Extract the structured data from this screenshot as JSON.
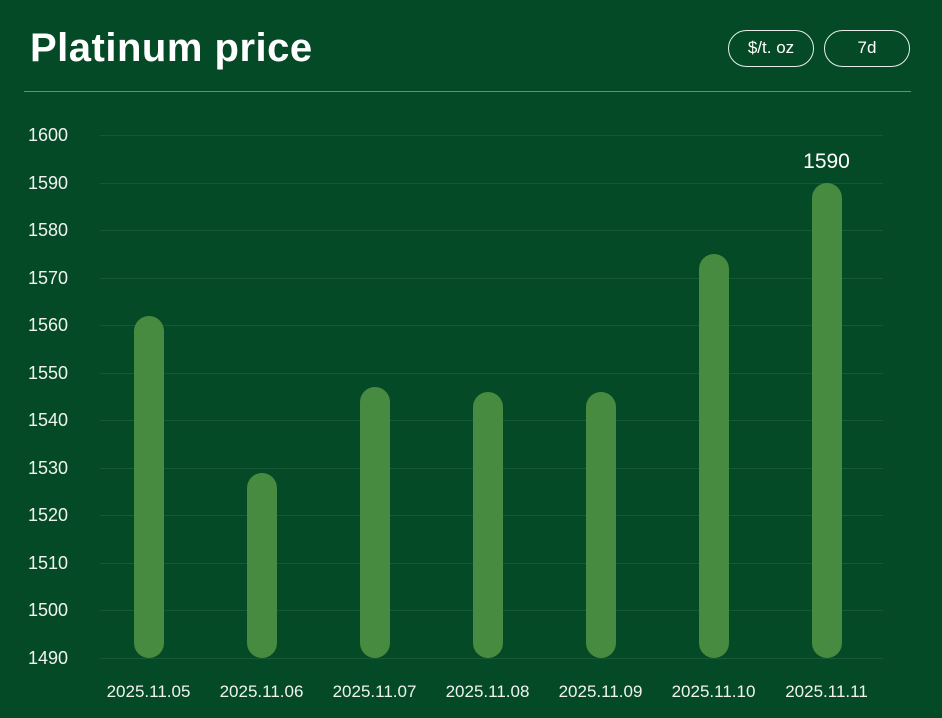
{
  "header": {
    "title": "Platinum price",
    "unit_button": "$/t. oz",
    "range_button": "7d"
  },
  "colors": {
    "background": "#054a26",
    "bar": "#478b41",
    "text": "#f0f3ef",
    "title_text": "#ffffff",
    "gridline": "rgba(255,255,255,0.08)",
    "divider": "rgba(186,214,124,0.55)",
    "button_border": "rgba(255,255,255,0.9)"
  },
  "chart_data": {
    "type": "bar",
    "title": "Platinum price",
    "unit": "$/t. oz",
    "range": "7d",
    "categories": [
      "2025.11.05",
      "2025.11.06",
      "2025.11.07",
      "2025.11.08",
      "2025.11.09",
      "2025.11.10",
      "2025.11.11"
    ],
    "values": [
      1562,
      1529,
      1547,
      1546,
      1546,
      1575,
      1590
    ],
    "ylim": [
      1490,
      1600
    ],
    "ytick_step": 10,
    "yticks": [
      1600,
      1590,
      1580,
      1570,
      1560,
      1550,
      1540,
      1530,
      1520,
      1510,
      1500,
      1490
    ],
    "grid": true,
    "legend": false,
    "annotations": [
      {
        "index": 6,
        "text": "1590"
      }
    ]
  }
}
